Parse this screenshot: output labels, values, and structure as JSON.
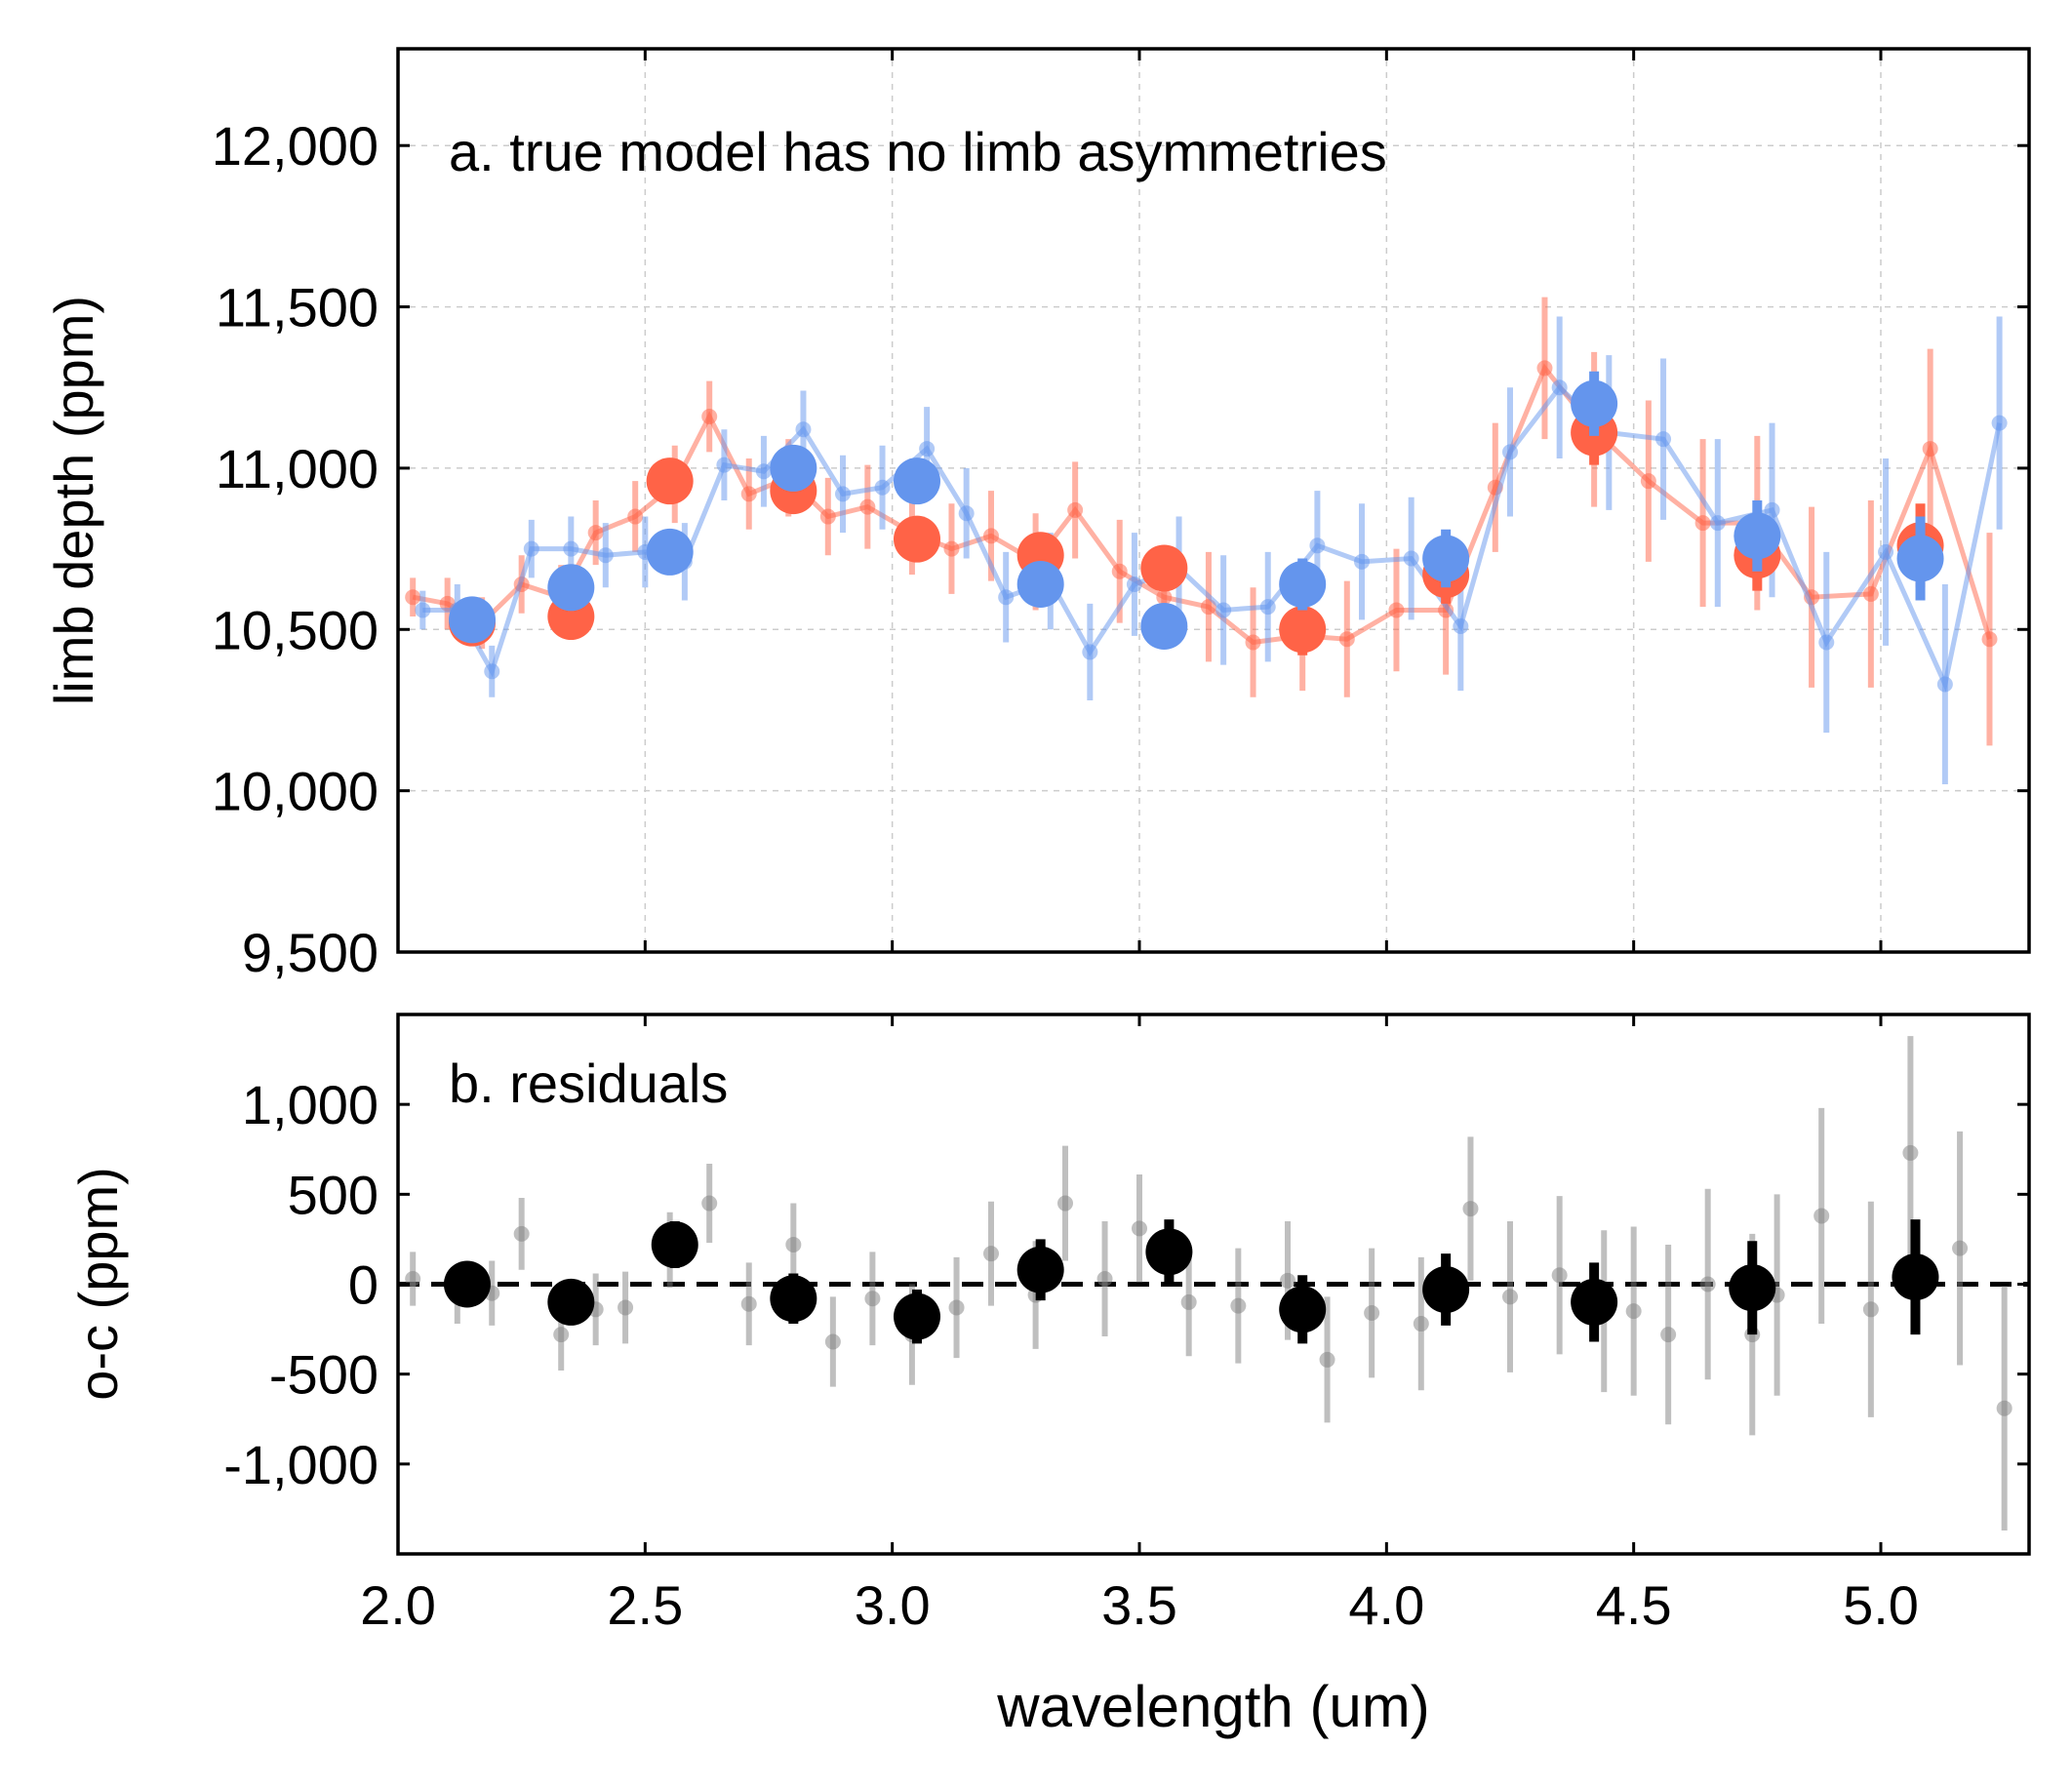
{
  "chart_data": [
    {
      "type": "scatter",
      "panel": "a",
      "annotation": "a. true model has no limb asymmetries",
      "ylabel": "limb depth (ppm)",
      "xlim": [
        2.0,
        5.3
      ],
      "ylim": [
        9500,
        12300
      ],
      "y_ticks": [
        9500,
        10000,
        10500,
        11000,
        11500,
        12000
      ],
      "y_tick_labels": [
        "9,500",
        "10,000",
        "10,500",
        "11,000",
        "11,500",
        "12,000"
      ],
      "x_ticks": [
        2.5,
        3.0,
        3.5,
        4.0,
        4.5,
        5.0
      ],
      "grid": true,
      "series": [
        {
          "color": "#ff6347",
          "style": "line-with-small-markers",
          "alpha": 0.5,
          "x": [
            2.03,
            2.1,
            2.17,
            2.25,
            2.33,
            2.4,
            2.48,
            2.56,
            2.63,
            2.71,
            2.79,
            2.87,
            2.95,
            3.04,
            3.12,
            3.2,
            3.29,
            3.37,
            3.46,
            3.55,
            3.64,
            3.73,
            3.83,
            3.92,
            4.02,
            4.12,
            4.22,
            4.32,
            4.42,
            4.53,
            4.64,
            4.75,
            4.86,
            4.98,
            5.1,
            5.22
          ],
          "y": [
            10600,
            10580,
            10520,
            10640,
            10600,
            10800,
            10850,
            10950,
            11160,
            10920,
            10970,
            10850,
            10880,
            10800,
            10750,
            10790,
            10710,
            10870,
            10680,
            10600,
            10570,
            10460,
            10480,
            10470,
            10560,
            10560,
            10940,
            11310,
            11120,
            10960,
            10830,
            10830,
            10600,
            10610,
            11060,
            10470
          ],
          "yerr": [
            60,
            80,
            80,
            90,
            100,
            100,
            110,
            120,
            110,
            110,
            120,
            120,
            130,
            130,
            140,
            140,
            150,
            150,
            160,
            160,
            170,
            170,
            170,
            180,
            190,
            200,
            200,
            220,
            240,
            250,
            260,
            270,
            280,
            290,
            310,
            330
          ]
        },
        {
          "color": "#6495ed",
          "style": "line-with-small-markers",
          "alpha": 0.5,
          "x": [
            2.05,
            2.12,
            2.19,
            2.27,
            2.35,
            2.42,
            2.5,
            2.58,
            2.66,
            2.74,
            2.82,
            2.9,
            2.98,
            3.07,
            3.15,
            3.23,
            3.32,
            3.4,
            3.49,
            3.58,
            3.67,
            3.76,
            3.86,
            3.95,
            4.05,
            4.15,
            4.25,
            4.35,
            4.45,
            4.56,
            4.67,
            4.78,
            4.89,
            5.01,
            5.13,
            5.24
          ],
          "y": [
            10560,
            10560,
            10370,
            10750,
            10750,
            10730,
            10740,
            10710,
            11010,
            10990,
            11120,
            10920,
            10940,
            11060,
            10860,
            10600,
            10650,
            10430,
            10640,
            10690,
            10560,
            10570,
            10760,
            10710,
            10720,
            10510,
            11050,
            11250,
            11110,
            11090,
            10830,
            10870,
            10460,
            10740,
            10330,
            11140
          ],
          "yerr": [
            60,
            80,
            80,
            90,
            100,
            100,
            110,
            120,
            110,
            110,
            120,
            120,
            130,
            130,
            140,
            140,
            150,
            150,
            160,
            160,
            170,
            170,
            170,
            180,
            190,
            200,
            200,
            220,
            240,
            250,
            260,
            270,
            280,
            290,
            310,
            330
          ]
        },
        {
          "color": "#ff6347",
          "style": "large-markers",
          "x": [
            2.15,
            2.35,
            2.55,
            2.8,
            3.05,
            3.3,
            3.55,
            3.83,
            4.12,
            4.42,
            4.75,
            5.08
          ],
          "y": [
            10520,
            10540,
            10960,
            10930,
            10780,
            10730,
            10690,
            10500,
            10670,
            11110,
            10730,
            10760
          ],
          "yerr": [
            40,
            50,
            50,
            60,
            60,
            70,
            70,
            80,
            90,
            100,
            110,
            130
          ]
        },
        {
          "color": "#6495ed",
          "style": "large-markers",
          "x": [
            2.15,
            2.35,
            2.55,
            2.8,
            3.05,
            3.3,
            3.55,
            3.83,
            4.12,
            4.42,
            4.75,
            5.08
          ],
          "y": [
            10530,
            10630,
            10740,
            11000,
            10960,
            10640,
            10510,
            10640,
            10720,
            11200,
            10790,
            10720
          ],
          "yerr": [
            40,
            50,
            50,
            60,
            60,
            70,
            70,
            80,
            90,
            100,
            110,
            130
          ]
        }
      ]
    },
    {
      "type": "scatter",
      "panel": "b",
      "annotation": "b. residuals",
      "xlabel": "wavelength (um)",
      "ylabel": "o-c (ppm)",
      "xlim": [
        2.0,
        5.3
      ],
      "ylim": [
        -1500,
        1500
      ],
      "y_ticks": [
        -1000,
        -500,
        0,
        500,
        1000
      ],
      "y_tick_labels": [
        "-1,000",
        "-500",
        "0",
        "500",
        "1,000"
      ],
      "x_ticks": [
        2.0,
        2.5,
        3.0,
        3.5,
        4.0,
        4.5,
        5.0
      ],
      "x_tick_labels": [
        "2.0",
        "2.5",
        "3.0",
        "3.5",
        "4.0",
        "4.5",
        "5.0"
      ],
      "reference_line": 0,
      "series": [
        {
          "color": "#808080",
          "style": "small-markers",
          "alpha": 0.5,
          "x": [
            2.03,
            2.12,
            2.19,
            2.25,
            2.33,
            2.4,
            2.46,
            2.55,
            2.63,
            2.71,
            2.8,
            2.88,
            2.96,
            3.04,
            3.13,
            3.2,
            3.29,
            3.35,
            3.43,
            3.5,
            3.6,
            3.7,
            3.8,
            3.88,
            3.97,
            4.07,
            4.17,
            4.25,
            4.35,
            4.44,
            4.5,
            4.57,
            4.65,
            4.74,
            4.79,
            4.88,
            4.98,
            5.06,
            5.16,
            5.25
          ],
          "y": [
            30,
            -60,
            -50,
            280,
            -280,
            -140,
            -130,
            190,
            450,
            -110,
            220,
            -320,
            -80,
            -280,
            -130,
            170,
            -60,
            450,
            30,
            310,
            -100,
            -120,
            20,
            -420,
            -160,
            -220,
            420,
            -70,
            50,
            -150,
            -150,
            -280,
            0,
            -280,
            -60,
            380,
            -140,
            730,
            200,
            -690
          ],
          "yerr": [
            150,
            160,
            180,
            200,
            200,
            200,
            200,
            210,
            220,
            230,
            230,
            250,
            260,
            280,
            280,
            290,
            300,
            320,
            320,
            300,
            300,
            320,
            330,
            350,
            360,
            370,
            400,
            420,
            440,
            450,
            470,
            500,
            530,
            560,
            560,
            600,
            600,
            650,
            650,
            680
          ]
        },
        {
          "color": "#000000",
          "style": "large-markers",
          "x": [
            2.14,
            2.35,
            2.56,
            2.8,
            3.05,
            3.3,
            3.56,
            3.83,
            4.12,
            4.42,
            4.74,
            5.07
          ],
          "y": [
            0,
            -100,
            220,
            -80,
            -180,
            80,
            180,
            -140,
            -30,
            -100,
            -20,
            40
          ],
          "yerr": [
            100,
            110,
            130,
            140,
            150,
            170,
            180,
            190,
            200,
            220,
            260,
            320
          ]
        }
      ]
    }
  ]
}
